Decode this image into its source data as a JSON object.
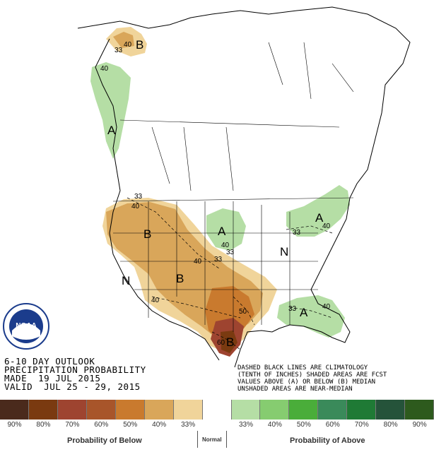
{
  "header": {
    "line1": "6-10 DAY OUTLOOK",
    "line2": "PRECIPITATION PROBABILITY",
    "line3": "MADE  19 JUL 2015",
    "line4": "VALID  JUL 25 - 29, 2015"
  },
  "notes": {
    "line1": "DASHED BLACK LINES ARE CLIMATOLOGY",
    "line2": "(TENTH OF INCHES) SHADED AREAS ARE FCST",
    "line3": "VALUES ABOVE (A) OR BELOW (B) MEDIAN",
    "line4": "UNSHADED AREAS ARE NEAR-MEDIAN"
  },
  "logo": {
    "text": "NOAA"
  },
  "map_labels": {
    "b_alaska": "B",
    "a_alaska": "A",
    "b_west": "B",
    "b_plains": "B",
    "b_texas": "B",
    "a_midwest": "A",
    "a_northeast": "A",
    "a_southeast": "A",
    "n_west": "N",
    "n_east": "N",
    "c33_ak": "33",
    "c40_ak": "40",
    "c40_ak2": "40",
    "c33_wa": "33",
    "c40_wa": "40",
    "c40_mw": "40",
    "c33_mw": "33",
    "c40_pl": "40",
    "c33_pl": "33",
    "c40_sw": "40",
    "c50_tx": "50",
    "c60_tx": "60",
    "c33_ne": "33",
    "c40_ne": "40",
    "c33_se": "33",
    "c40_se": "40"
  },
  "legend": {
    "colors": [
      "#4a2a1c",
      "#7a3a10",
      "#9e4430",
      "#a8552a",
      "#c97a2e",
      "#d9a65a",
      "#f0d49a",
      "#ffffff",
      "#b5dea5",
      "#86cc70",
      "#4aad3a",
      "#3a8a5a",
      "#1f7a35",
      "#25533a",
      "#2d5a1d"
    ],
    "labels": [
      "90%",
      "80%",
      "70%",
      "60%",
      "50%",
      "40%",
      "33%",
      "",
      "33%",
      "40%",
      "50%",
      "60%",
      "70%",
      "80%",
      "90%"
    ],
    "below_caption": "Probability of Below",
    "normal_caption": "Normal",
    "above_caption": "Probability of Above"
  }
}
